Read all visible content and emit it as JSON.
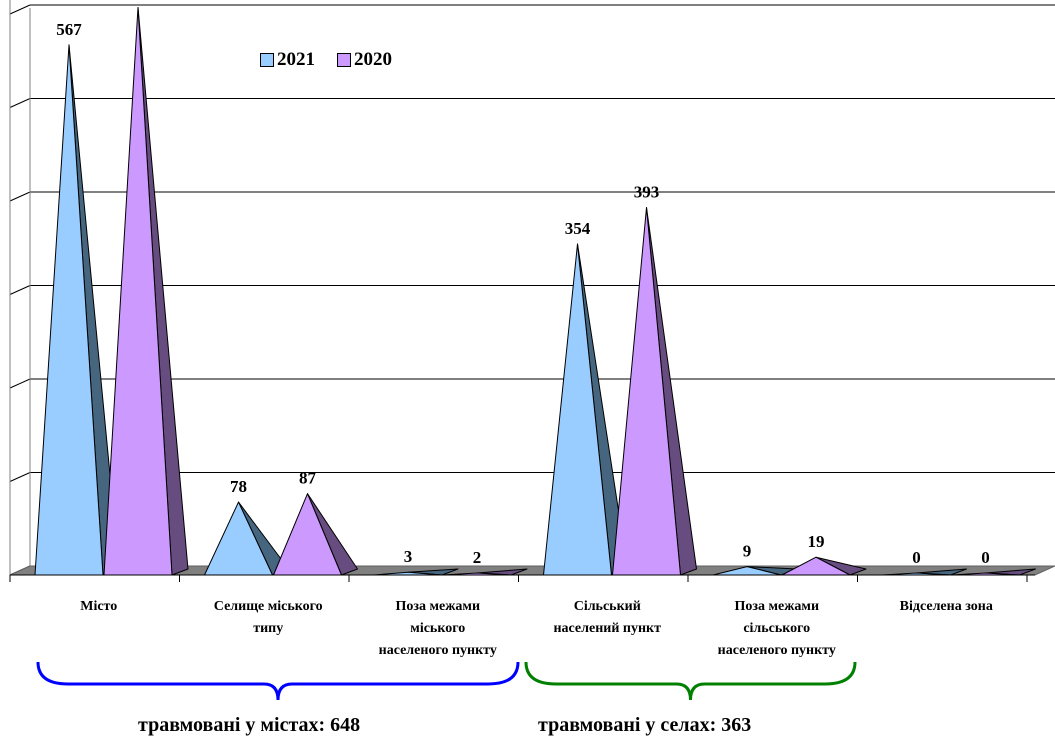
{
  "chart_data": {
    "type": "bar",
    "categories": [
      [
        "Місто"
      ],
      [
        "Селище міського",
        "типу"
      ],
      [
        "Поза межами",
        "міського",
        "населеного пункту"
      ],
      [
        "Сільський",
        "населений пункт"
      ],
      [
        "Поза межами",
        "сільського",
        "населеного пункту"
      ],
      [
        "Відселена зона"
      ]
    ],
    "series": [
      {
        "name": "2021",
        "values": [
          567,
          78,
          3,
          354,
          9,
          0
        ],
        "color": "#99ccff",
        "shade": "#46667f"
      },
      {
        "name": "2020",
        "values": [
          607,
          87,
          2,
          393,
          19,
          0
        ],
        "color": "#cc99ff",
        "shade": "#664c7f"
      }
    ],
    "ylim": [
      0,
      650
    ],
    "y_gridlines": [
      0,
      100,
      200,
      300,
      400,
      500,
      600
    ],
    "grid": true,
    "legend": "top"
  },
  "summary": {
    "cities_label": "травмовані у містах: 648",
    "villages_label": "травмовані у селах: 363",
    "cities_color": "#0000ff",
    "villages_color": "#008000"
  }
}
